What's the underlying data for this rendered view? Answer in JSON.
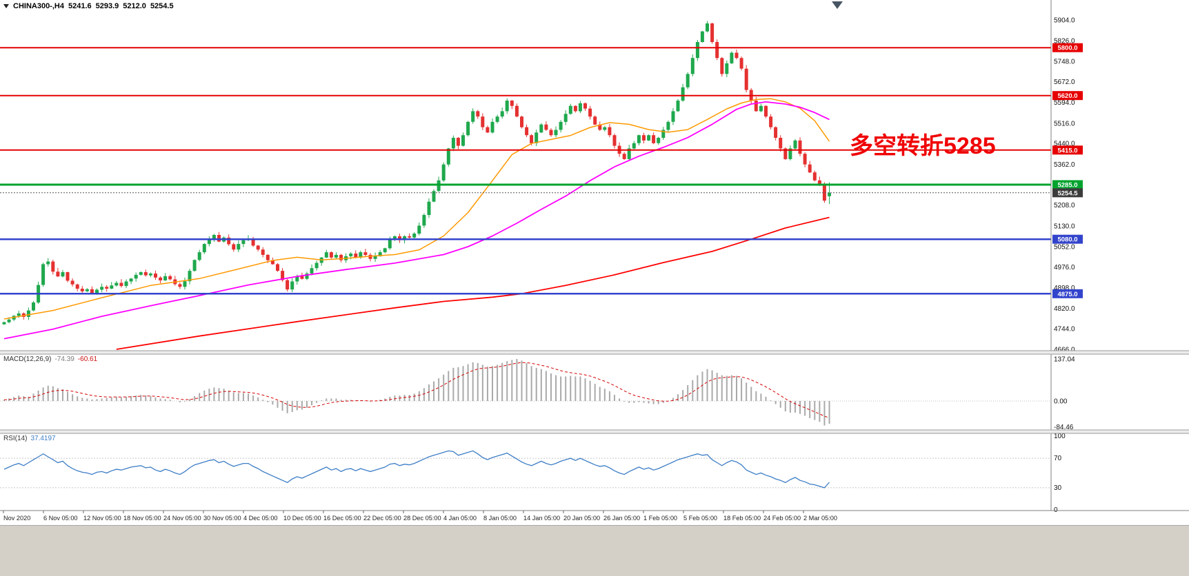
{
  "header": {
    "symbol": "CHINA300-,H4",
    "open": "5241.6",
    "high": "5293.9",
    "low": "5212.0",
    "close": "5254.5"
  },
  "annotation": {
    "text": "多空转折5285",
    "color": "#f00404"
  },
  "macd_box": {
    "label": "MACD(12,26,9)",
    "value": "-74.39",
    "signal": "-60.61"
  },
  "rsi_box": {
    "label": "RSI(14)",
    "value": "37.4197"
  },
  "current_price": {
    "value": 5254.5,
    "label": "5254.5",
    "badge_color": "#3c3c3c"
  },
  "icons": {
    "symbol_marker": "triangle-down",
    "chart_end_marker": "triangle-down"
  },
  "chart_data": {
    "type": "candlestick",
    "symbol": "CHINA300-",
    "timeframe": "H4",
    "title": "CHINA300- H4 candlestick chart with MACD and RSI",
    "colors": {
      "up": "#1fa84d",
      "down": "#e53030"
    },
    "y_axis": {
      "max_tick": 5904,
      "min_tick": 4666,
      "ticks": [
        5904,
        5826,
        5748,
        5672,
        5594,
        5516,
        5440,
        5362,
        5286,
        5208,
        5130,
        5052,
        4976,
        4898,
        4820,
        4744,
        4666
      ]
    },
    "x_labels": [
      "Nov 2020",
      "6 Nov 05:00",
      "12 Nov 05:00",
      "18 Nov 05:00",
      "24 Nov 05:00",
      "30 Nov 05:00",
      "4 Dec 05:00",
      "10 Dec 05:00",
      "16 Dec 05:00",
      "22 Dec 05:00",
      "28 Dec 05:00",
      "4 Jan 05:00",
      "8 Jan 05:00",
      "14 Jan 05:00",
      "20 Jan 05:00",
      "26 Jan 05:00",
      "1 Feb 05:00",
      "5 Feb 05:00",
      "18 Feb 05:00",
      "24 Feb 05:00",
      "2 Mar 05:00"
    ],
    "closes": [
      4768,
      4778,
      4792,
      4801,
      4788,
      4812,
      4842,
      4908,
      4986,
      4996,
      4958,
      4940,
      4956,
      4924,
      4910,
      4894,
      4884,
      4892,
      4878,
      4890,
      4901,
      4894,
      4906,
      4916,
      4904,
      4921,
      4932,
      4946,
      4956,
      4944,
      4951,
      4936,
      4925,
      4941,
      4929,
      4911,
      4901,
      4922,
      4961,
      5002,
      5031,
      5062,
      5081,
      5096,
      5071,
      5086,
      5061,
      5041,
      5062,
      5076,
      5081,
      5056,
      5041,
      5021,
      5001,
      4986,
      4961,
      4926,
      4891,
      4921,
      4941,
      4931,
      4951,
      4971,
      4991,
      5011,
      5031,
      5011,
      5021,
      5001,
      5016,
      5026,
      5011,
      5031,
      5021,
      5006,
      5016,
      5031,
      5046,
      5081,
      5091,
      5076,
      5091,
      5086,
      5101,
      5131,
      5171,
      5221,
      5261,
      5301,
      5361,
      5421,
      5461,
      5431,
      5471,
      5521,
      5561,
      5541,
      5501,
      5481,
      5521,
      5541,
      5561,
      5601,
      5581,
      5541,
      5501,
      5471,
      5441,
      5481,
      5511,
      5491,
      5471,
      5491,
      5521,
      5551,
      5581,
      5561,
      5591,
      5571,
      5541,
      5511,
      5491,
      5501,
      5471,
      5431,
      5401,
      5381,
      5421,
      5441,
      5471,
      5451,
      5471,
      5441,
      5461,
      5491,
      5521,
      5561,
      5601,
      5651,
      5701,
      5761,
      5821,
      5861,
      5891,
      5821,
      5761,
      5701,
      5741,
      5781,
      5761,
      5721,
      5641,
      5601,
      5561,
      5581,
      5541,
      5501,
      5461,
      5421,
      5381,
      5421,
      5451,
      5401,
      5361,
      5331,
      5301,
      5286,
      5225,
      5254.5
    ],
    "current_bar": {
      "open": 5241.6,
      "high": 5293.9,
      "low": 5212.0,
      "close": 5254.5
    },
    "overlays": [
      {
        "name": "ma-fast-orange",
        "color": "#ff9900",
        "width": 1.5,
        "points": [
          [
            0,
            4780
          ],
          [
            10,
            4812
          ],
          [
            20,
            4860
          ],
          [
            30,
            4906
          ],
          [
            40,
            4932
          ],
          [
            48,
            4968
          ],
          [
            55,
            5000
          ],
          [
            60,
            5012
          ],
          [
            65,
            5002
          ],
          [
            70,
            5008
          ],
          [
            75,
            5016
          ],
          [
            80,
            5022
          ],
          [
            85,
            5040
          ],
          [
            90,
            5092
          ],
          [
            95,
            5180
          ],
          [
            100,
            5300
          ],
          [
            104,
            5398
          ],
          [
            108,
            5440
          ],
          [
            112,
            5455
          ],
          [
            116,
            5470
          ],
          [
            120,
            5500
          ],
          [
            124,
            5518
          ],
          [
            128,
            5512
          ],
          [
            132,
            5492
          ],
          [
            136,
            5482
          ],
          [
            140,
            5492
          ],
          [
            144,
            5530
          ],
          [
            148,
            5570
          ],
          [
            151,
            5592
          ],
          [
            154,
            5605
          ],
          [
            157,
            5608
          ],
          [
            160,
            5596
          ],
          [
            163,
            5572
          ],
          [
            166,
            5525
          ],
          [
            169,
            5448
          ]
        ]
      },
      {
        "name": "ma-mid-magenta",
        "color": "#ff00ff",
        "width": 1.8,
        "points": [
          [
            0,
            4706
          ],
          [
            10,
            4742
          ],
          [
            20,
            4790
          ],
          [
            30,
            4830
          ],
          [
            40,
            4868
          ],
          [
            50,
            4908
          ],
          [
            60,
            4940
          ],
          [
            70,
            4966
          ],
          [
            80,
            4990
          ],
          [
            90,
            5022
          ],
          [
            95,
            5052
          ],
          [
            100,
            5092
          ],
          [
            105,
            5140
          ],
          [
            110,
            5192
          ],
          [
            115,
            5242
          ],
          [
            120,
            5300
          ],
          [
            125,
            5352
          ],
          [
            130,
            5392
          ],
          [
            135,
            5425
          ],
          [
            140,
            5462
          ],
          [
            145,
            5512
          ],
          [
            150,
            5568
          ],
          [
            153,
            5588
          ],
          [
            156,
            5596
          ],
          [
            160,
            5588
          ],
          [
            163,
            5576
          ],
          [
            166,
            5556
          ],
          [
            169,
            5530
          ]
        ]
      },
      {
        "name": "ma-slow-red",
        "color": "#ff0000",
        "width": 1.8,
        "points": [
          [
            23,
            4666
          ],
          [
            40,
            4716
          ],
          [
            60,
            4770
          ],
          [
            80,
            4822
          ],
          [
            90,
            4846
          ],
          [
            100,
            4862
          ],
          [
            106,
            4875
          ],
          [
            115,
            4906
          ],
          [
            125,
            4946
          ],
          [
            135,
            4992
          ],
          [
            145,
            5034
          ],
          [
            153,
            5080
          ],
          [
            160,
            5122
          ],
          [
            169,
            5162
          ]
        ]
      }
    ],
    "hlines": [
      {
        "value": 5800,
        "label": "5800.0",
        "color": "#e60000",
        "width": 2,
        "type": "resistance"
      },
      {
        "value": 5620,
        "label": "5620.0",
        "color": "#e60000",
        "width": 2,
        "type": "resistance"
      },
      {
        "value": 5415,
        "label": "5415.0",
        "color": "#e60000",
        "width": 2,
        "type": "resistance"
      },
      {
        "value": 5285,
        "label": "5285.0",
        "color": "#00a32e",
        "width": 3,
        "type": "pivot"
      },
      {
        "value": 5080,
        "label": "5080.0",
        "color": "#3344cc",
        "width": 2.5,
        "type": "support"
      },
      {
        "value": 4875,
        "label": "4875.0",
        "color": "#3344cc",
        "width": 2.5,
        "type": "support"
      }
    ],
    "indicators": [
      {
        "name": "MACD",
        "params": "12,26,9",
        "last_value": -74.39,
        "last_signal": -60.61,
        "scale": [
          137.04,
          0,
          -84.46
        ],
        "histogram": [
          4,
          8,
          13,
          18,
          16,
          14,
          24,
          34,
          44,
          50,
          48,
          42,
          38,
          30,
          22,
          15,
          10,
          8,
          5,
          6,
          8,
          10,
          12,
          14,
          12,
          14,
          16,
          18,
          20,
          18,
          16,
          12,
          8,
          6,
          4,
          0,
          -4,
          -2,
          6,
          16,
          26,
          34,
          40,
          44,
          42,
          40,
          34,
          28,
          26,
          26,
          24,
          18,
          12,
          4,
          -4,
          -12,
          -22,
          -32,
          -40,
          -36,
          -30,
          -28,
          -22,
          -14,
          -6,
          2,
          8,
          8,
          8,
          4,
          4,
          4,
          2,
          2,
          0,
          -2,
          0,
          4,
          8,
          14,
          18,
          18,
          20,
          20,
          24,
          32,
          42,
          54,
          64,
          74,
          86,
          98,
          108,
          110,
          114,
          120,
          126,
          124,
          118,
          112,
          114,
          118,
          124,
          130,
          134,
          137,
          132,
          124,
          114,
          108,
          104,
          98,
          90,
          84,
          80,
          80,
          82,
          80,
          80,
          74,
          66,
          56,
          46,
          40,
          32,
          20,
          8,
          -2,
          -6,
          -6,
          -4,
          -6,
          -8,
          -10,
          -10,
          -6,
          0,
          10,
          22,
          36,
          52,
          68,
          84,
          96,
          104,
          100,
          92,
          84,
          82,
          84,
          82,
          74,
          60,
          46,
          32,
          24,
          14,
          2,
          -10,
          -22,
          -34,
          -38,
          -38,
          -42,
          -48,
          -56,
          -62,
          -68,
          -80,
          -74.39
        ]
      },
      {
        "name": "RSI",
        "params": "14",
        "last_value": 37.4197,
        "scale": [
          100,
          70,
          30,
          0
        ],
        "levels": [
          70,
          30
        ],
        "values": [
          55,
          58,
          61,
          63,
          60,
          64,
          68,
          72,
          76,
          72,
          68,
          64,
          66,
          60,
          56,
          53,
          51,
          50,
          48,
          51,
          52,
          50,
          53,
          55,
          54,
          56,
          58,
          59,
          60,
          57,
          58,
          54,
          52,
          55,
          53,
          50,
          48,
          52,
          57,
          61,
          63,
          65,
          67,
          68,
          64,
          66,
          62,
          59,
          61,
          63,
          63,
          59,
          56,
          52,
          49,
          46,
          43,
          40,
          37,
          42,
          45,
          43,
          46,
          49,
          52,
          55,
          58,
          54,
          56,
          52,
          55,
          56,
          53,
          56,
          54,
          52,
          54,
          56,
          58,
          62,
          63,
          60,
          62,
          61,
          63,
          66,
          69,
          72,
          74,
          76,
          78,
          80,
          79,
          74,
          76,
          78,
          80,
          76,
          71,
          68,
          71,
          73,
          75,
          77,
          73,
          69,
          65,
          62,
          60,
          63,
          66,
          63,
          61,
          63,
          66,
          68,
          70,
          67,
          70,
          67,
          64,
          61,
          59,
          60,
          57,
          53,
          50,
          48,
          52,
          55,
          58,
          55,
          57,
          54,
          56,
          59,
          62,
          65,
          68,
          70,
          72,
          74,
          76,
          74,
          75,
          68,
          64,
          60,
          64,
          67,
          65,
          61,
          54,
          51,
          48,
          50,
          47,
          45,
          42,
          40,
          37,
          41,
          44,
          40,
          38,
          35,
          34,
          32,
          30,
          37.42
        ]
      }
    ]
  }
}
